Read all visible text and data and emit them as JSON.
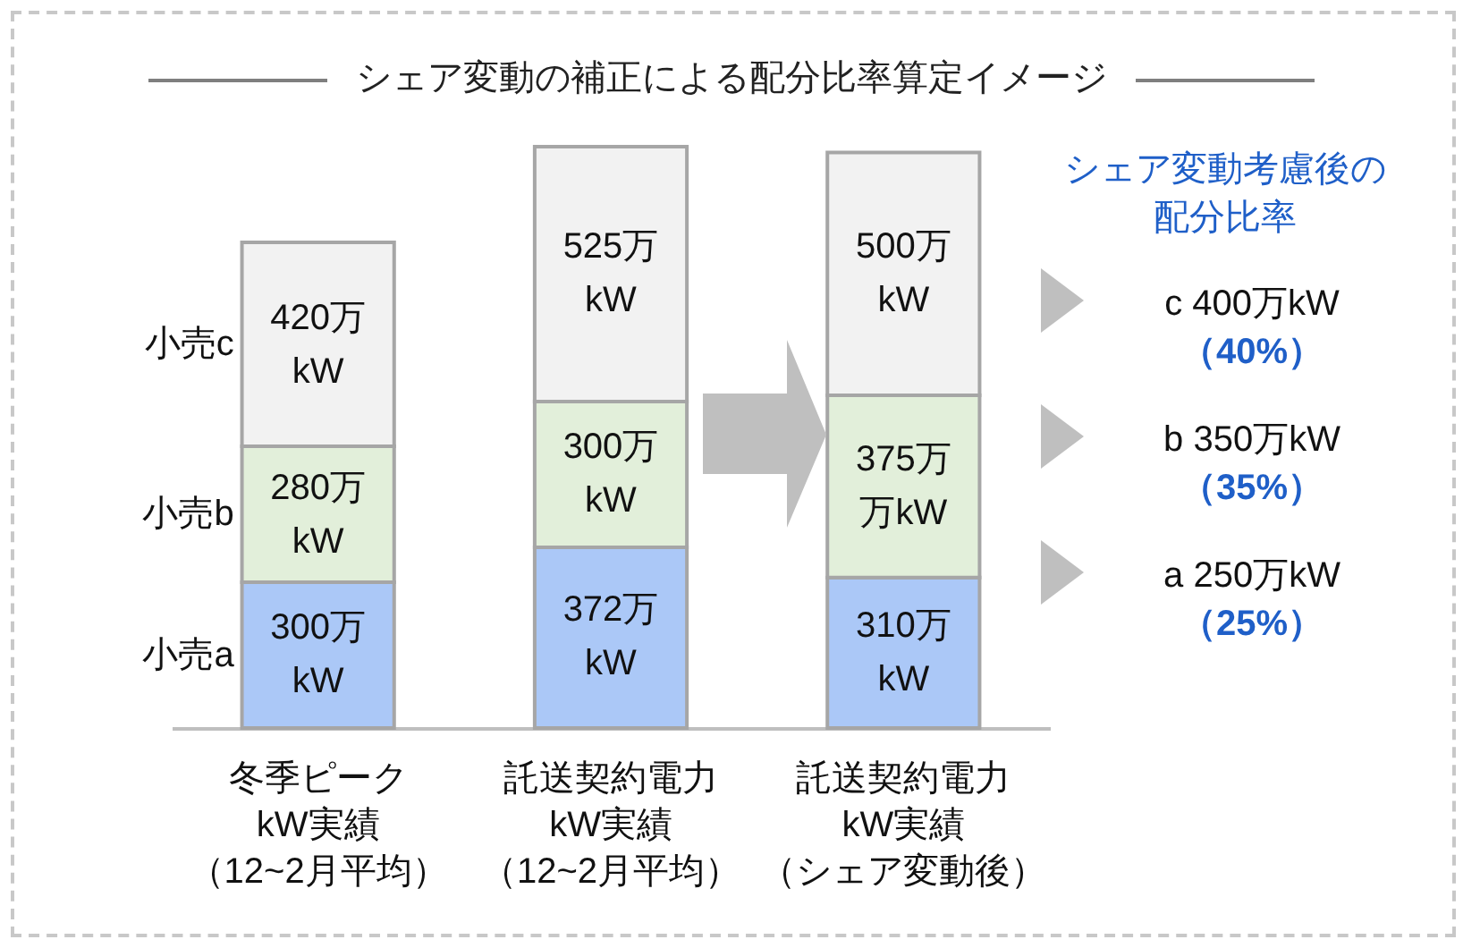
{
  "chart_data": {
    "type": "bar",
    "stacked": true,
    "title": "シェア変動の補正による配分比率算定イメージ",
    "categories": [
      "冬季ピークkW実績（12~2月平均）",
      "託送契約電力kW実績（12~2月平均）",
      "託送契約電力kW実績（シェア変動後）"
    ],
    "series": [
      {
        "name": "小売a",
        "color": "#abc8f7",
        "values": [
          300,
          372,
          310
        ],
        "value_labels": [
          "300万kW",
          "372万kW",
          "310万kW"
        ]
      },
      {
        "name": "小売b",
        "color": "#e2efda",
        "values": [
          280,
          300,
          375
        ],
        "value_labels": [
          "280万kW",
          "300万kW",
          "375万万kW"
        ]
      },
      {
        "name": "小売c",
        "color": "#f2f2f2",
        "values": [
          420,
          525,
          500
        ],
        "value_labels": [
          "420万kW",
          "525万kW",
          "500万kW"
        ]
      }
    ],
    "annotations": [
      "シェア変動考慮後の配分比率",
      "c 400万kW",
      "（40%）",
      "b 350万kW",
      "（35%）",
      "a 250万kW",
      "（25%）"
    ],
    "legend": false
  }
}
